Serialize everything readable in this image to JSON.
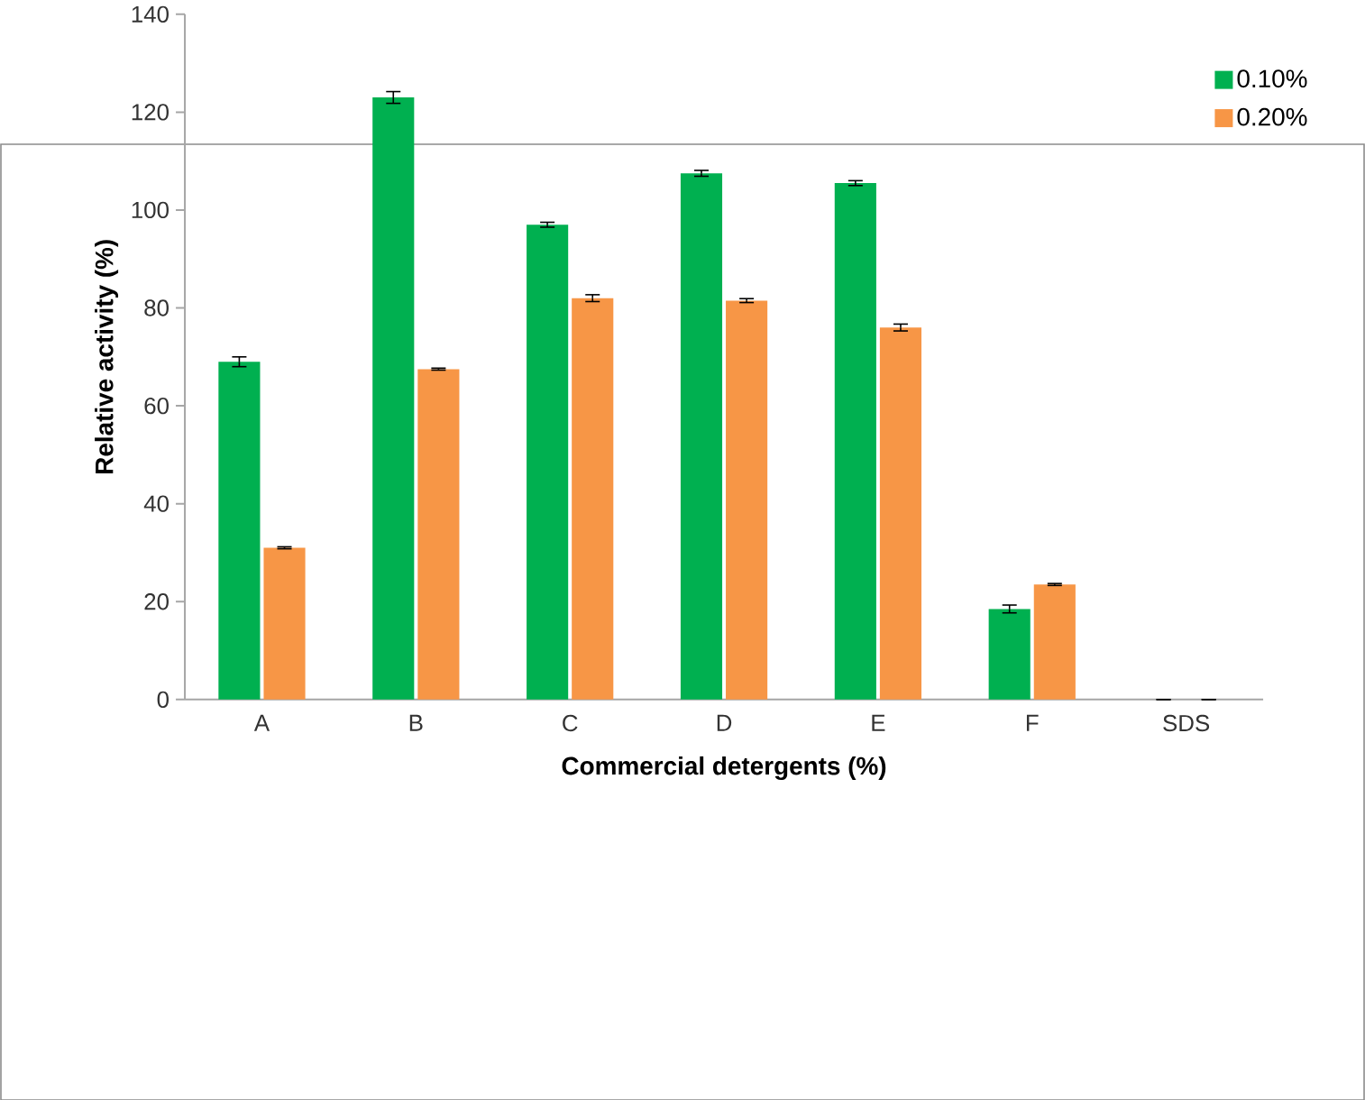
{
  "chart_data": {
    "type": "bar",
    "xlabel": "Commercial detergents (%)",
    "ylabel": "Relative activity (%)",
    "categories": [
      "A",
      "B",
      "C",
      "D",
      "E",
      "F",
      "SDS"
    ],
    "series": [
      {
        "name": "0.10%",
        "color": "#00b050",
        "values": [
          69,
          123,
          97,
          107.5,
          105.5,
          18.5,
          0
        ],
        "errors": [
          1,
          1.2,
          0.5,
          0.6,
          0.5,
          0.8,
          null
        ]
      },
      {
        "name": "0.20%",
        "color": "#f79646",
        "values": [
          31,
          67.5,
          82,
          81.5,
          76,
          23.5,
          0
        ],
        "errors": [
          0.2,
          0.2,
          0.7,
          0.4,
          0.7,
          0.2,
          null
        ]
      }
    ],
    "ylim": [
      0,
      140
    ],
    "yticks": [
      0,
      20,
      40,
      60,
      80,
      100,
      120,
      140
    ],
    "legend": "top right"
  }
}
